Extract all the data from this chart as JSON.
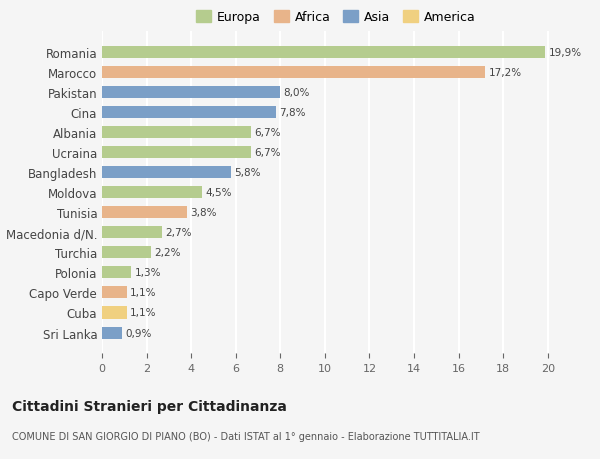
{
  "categories": [
    "Romania",
    "Marocco",
    "Pakistan",
    "Cina",
    "Albania",
    "Ucraina",
    "Bangladesh",
    "Moldova",
    "Tunisia",
    "Macedonia d/N.",
    "Turchia",
    "Polonia",
    "Capo Verde",
    "Cuba",
    "Sri Lanka"
  ],
  "values": [
    19.9,
    17.2,
    8.0,
    7.8,
    6.7,
    6.7,
    5.8,
    4.5,
    3.8,
    2.7,
    2.2,
    1.3,
    1.1,
    1.1,
    0.9
  ],
  "labels": [
    "19,9%",
    "17,2%",
    "8,0%",
    "7,8%",
    "6,7%",
    "6,7%",
    "5,8%",
    "4,5%",
    "3,8%",
    "2,7%",
    "2,2%",
    "1,3%",
    "1,1%",
    "1,1%",
    "0,9%"
  ],
  "continents": [
    "Europa",
    "Africa",
    "Asia",
    "Asia",
    "Europa",
    "Europa",
    "Asia",
    "Europa",
    "Africa",
    "Europa",
    "Europa",
    "Europa",
    "Africa",
    "America",
    "Asia"
  ],
  "colors": {
    "Europa": "#b5cc8e",
    "Africa": "#e8b48a",
    "Asia": "#7b9fc7",
    "America": "#f0d080"
  },
  "legend_labels": [
    "Europa",
    "Africa",
    "Asia",
    "America"
  ],
  "background_color": "#f5f5f5",
  "title1": "Cittadini Stranieri per Cittadinanza",
  "title2": "COMUNE DI SAN GIORGIO DI PIANO (BO) - Dati ISTAT al 1° gennaio - Elaborazione TUTTITALIA.IT",
  "xlim": [
    0,
    21
  ],
  "xticks": [
    0,
    2,
    4,
    6,
    8,
    10,
    12,
    14,
    16,
    18,
    20
  ],
  "grid_color": "#ffffff",
  "bar_height": 0.6
}
